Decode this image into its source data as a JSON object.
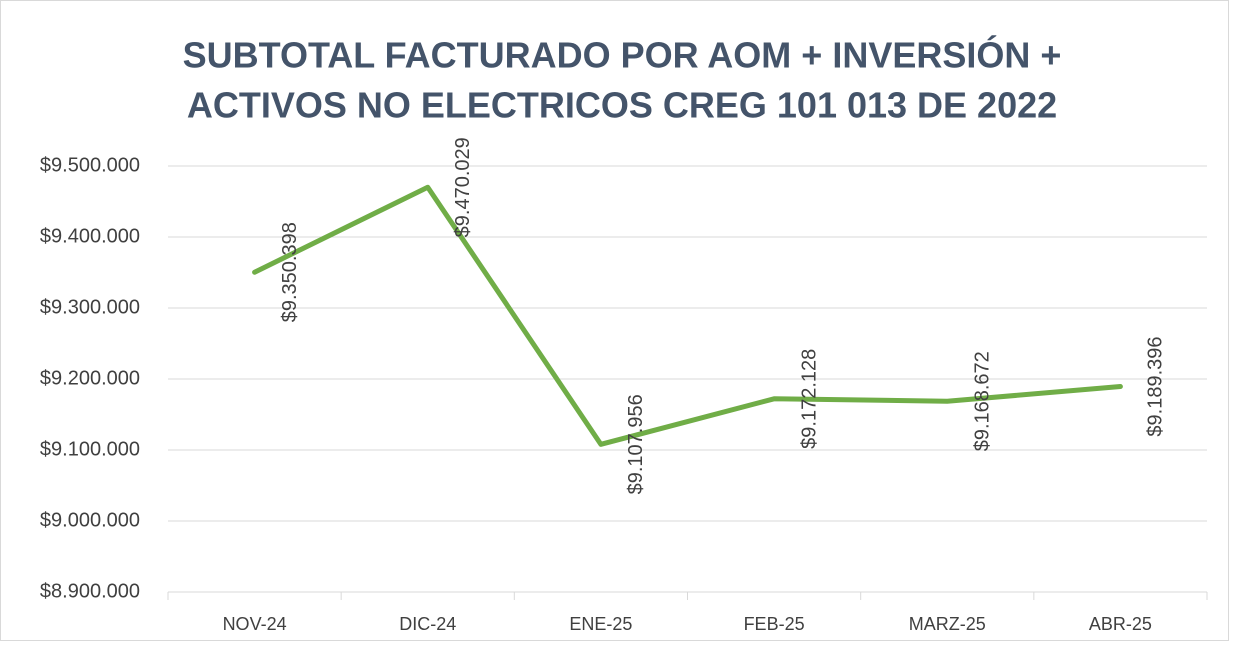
{
  "chart_data": {
    "type": "line",
    "title": [
      "SUBTOTAL  FACTURADO POR AOM + INVERSIÓN +",
      "ACTIVOS NO ELECTRICOS CREG 101 013 DE 2022"
    ],
    "categories": [
      "NOV-24",
      "DIC-24",
      "ENE-25",
      "FEB-25",
      "MARZ-25",
      "ABR-25"
    ],
    "series": [
      {
        "color": "#70ad47",
        "values": [
          9350398,
          9470029,
          9107956,
          9172128,
          9168672,
          9189396
        ],
        "value_labels": [
          "$9.350.398",
          "$9.470.029",
          "$9.107.956",
          "$9.172.128",
          "$9.168.672",
          "$9.189.396"
        ]
      }
    ],
    "ylim": [
      8900000,
      9500000
    ],
    "yticks": [
      {
        "value": 8900000,
        "label": "$8.900.000"
      },
      {
        "value": 9000000,
        "label": "$9.000.000"
      },
      {
        "value": 9100000,
        "label": "$9.100.000"
      },
      {
        "value": 9200000,
        "label": "$9.200.000"
      },
      {
        "value": 9300000,
        "label": "$9.300.000"
      },
      {
        "value": 9400000,
        "label": "$9.400.000"
      },
      {
        "value": 9500000,
        "label": "$9.500.000"
      }
    ],
    "grid": true
  }
}
